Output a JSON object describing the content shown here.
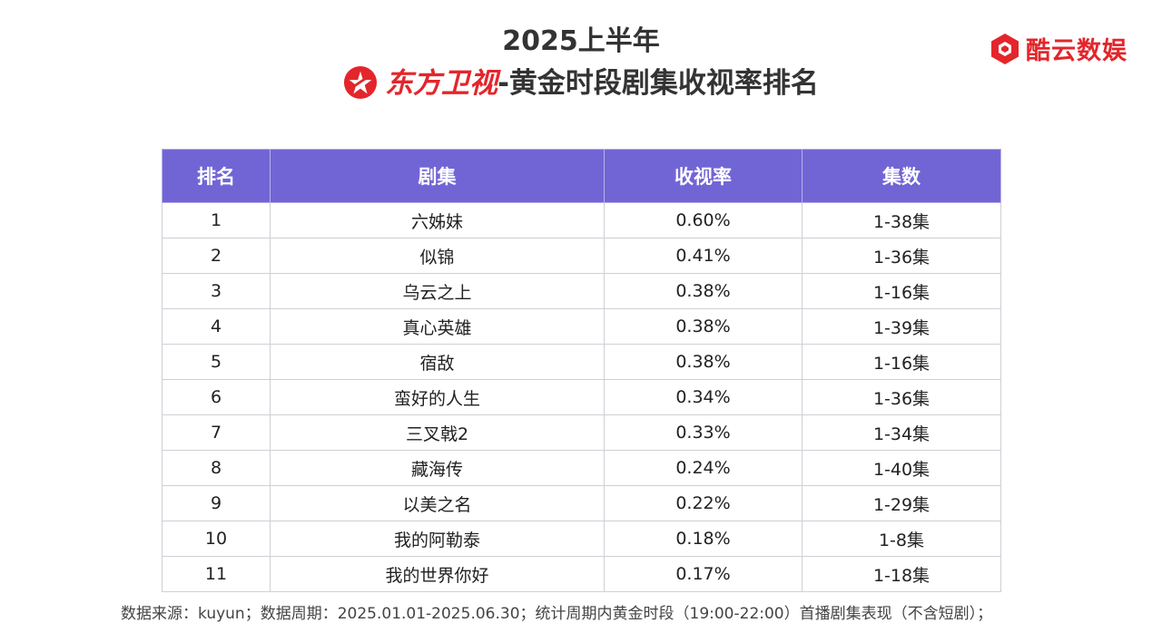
{
  "header": {
    "title_line1": "2025上半年",
    "channel_name": "东方卫视",
    "title_rest": "-黄金时段剧集收视率排名"
  },
  "brand": {
    "name": "酷云数娱",
    "color": "#e3262b"
  },
  "colors": {
    "header_bg": "#7165d5",
    "accent_red": "#e3262b"
  },
  "chart_data": {
    "type": "table",
    "columns": [
      "排名",
      "剧集",
      "收视率",
      "集数"
    ],
    "rows": [
      {
        "rank": "1",
        "title": "六姊妹",
        "rating": "0.60%",
        "episodes": "1-38集"
      },
      {
        "rank": "2",
        "title": "似锦",
        "rating": "0.41%",
        "episodes": "1-36集"
      },
      {
        "rank": "3",
        "title": "乌云之上",
        "rating": "0.38%",
        "episodes": "1-16集"
      },
      {
        "rank": "4",
        "title": "真心英雄",
        "rating": "0.38%",
        "episodes": "1-39集"
      },
      {
        "rank": "5",
        "title": "宿敌",
        "rating": "0.38%",
        "episodes": "1-16集"
      },
      {
        "rank": "6",
        "title": "蛮好的人生",
        "rating": "0.34%",
        "episodes": "1-36集"
      },
      {
        "rank": "7",
        "title": "三叉戟2",
        "rating": "0.33%",
        "episodes": "1-34集"
      },
      {
        "rank": "8",
        "title": "藏海传",
        "rating": "0.24%",
        "episodes": "1-40集"
      },
      {
        "rank": "9",
        "title": "以美之名",
        "rating": "0.22%",
        "episodes": "1-29集"
      },
      {
        "rank": "10",
        "title": "我的阿勒泰",
        "rating": "0.18%",
        "episodes": "1-8集"
      },
      {
        "rank": "11",
        "title": "我的世界你好",
        "rating": "0.17%",
        "episodes": "1-18集"
      }
    ]
  },
  "footnote": "数据来源：kuyun；数据周期：2025.01.01-2025.06.30；统计周期内黄金时段（19:00-22:00）首播剧集表现（不含短剧）；"
}
